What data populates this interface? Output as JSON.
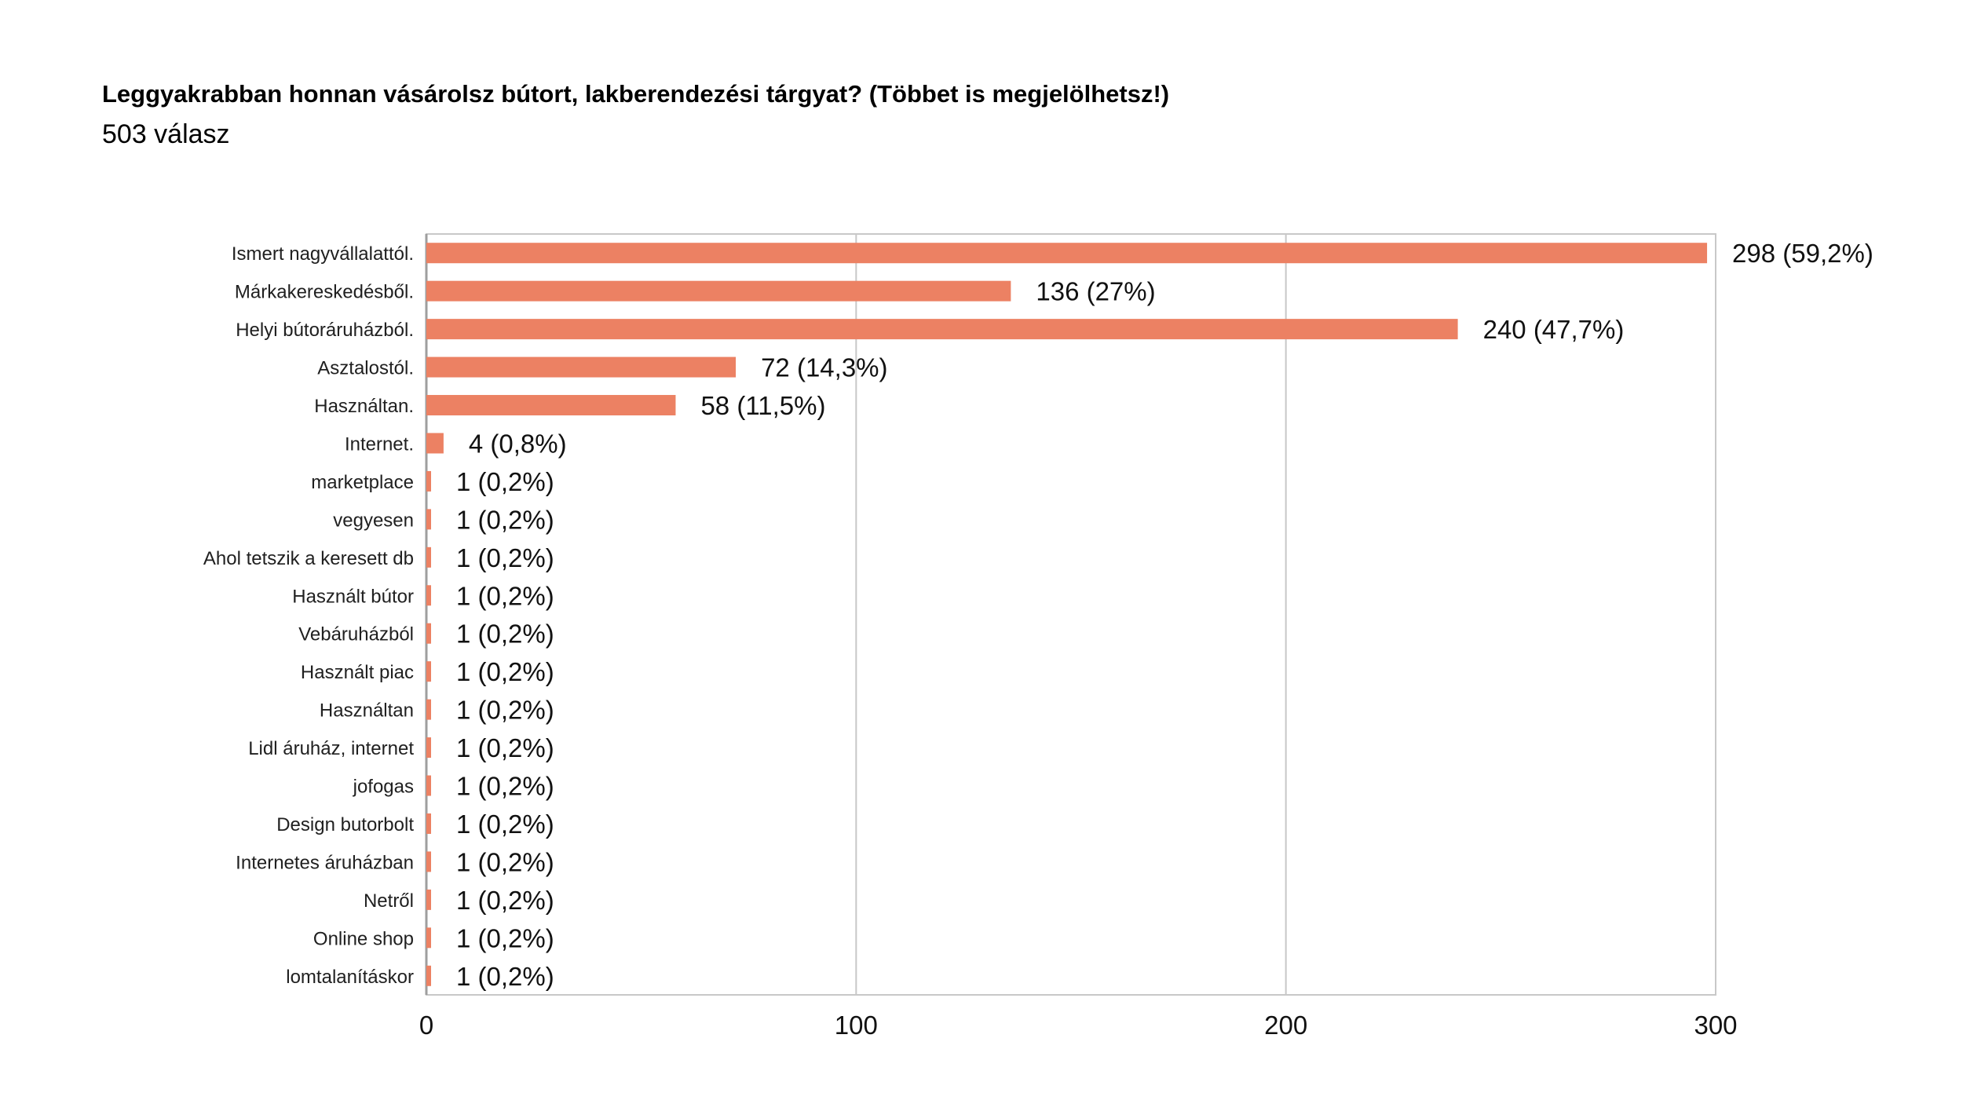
{
  "header": {
    "title": "Leggyakrabban honnan vásárolsz bútort, lakberendezési tárgyat? (Többet is megjelölhetsz!)",
    "subtitle": "503 válasz"
  },
  "colors": {
    "bar": "#ec8163",
    "grid": "#c8c8c8",
    "axis": "#9e9e9e"
  },
  "chart_data": {
    "type": "bar",
    "orientation": "horizontal",
    "title": "Leggyakrabban honnan vásárolsz bútort, lakberendezési tárgyat? (Többet is megjelölhetsz!)",
    "subtitle": "503 válasz",
    "categories": [
      "Ismert nagyvállalattól.",
      "Márkakereskedésből.",
      "Helyi bútoráruházból.",
      "Asztalostól.",
      "Használtan.",
      "Internet.",
      "marketplace",
      "vegyesen",
      "Ahol tetszik a keresett db",
      "Használt bútor",
      "Vebáruházból",
      "Használt piac",
      "Használtan",
      "Lidl áruház, internet",
      "jofogas",
      "Design butorbolt",
      "Internetes áruházban",
      "Netről",
      "Online shop",
      "lomtalanításkor"
    ],
    "values": [
      298,
      136,
      240,
      72,
      58,
      4,
      1,
      1,
      1,
      1,
      1,
      1,
      1,
      1,
      1,
      1,
      1,
      1,
      1,
      1
    ],
    "labels": [
      "298 (59,2%)",
      "136 (27%)",
      "240 (47,7%)",
      "72 (14,3%)",
      "58 (11,5%)",
      "4 (0,8%)",
      "1 (0,2%)",
      "1 (0,2%)",
      "1 (0,2%)",
      "1 (0,2%)",
      "1 (0,2%)",
      "1 (0,2%)",
      "1 (0,2%)",
      "1 (0,2%)",
      "1 (0,2%)",
      "1 (0,2%)",
      "1 (0,2%)",
      "1 (0,2%)",
      "1 (0,2%)",
      "1 (0,2%)"
    ],
    "xlim": [
      0,
      300
    ],
    "xticks": [
      0,
      100,
      200,
      300
    ],
    "grid": true,
    "legend": "none"
  }
}
